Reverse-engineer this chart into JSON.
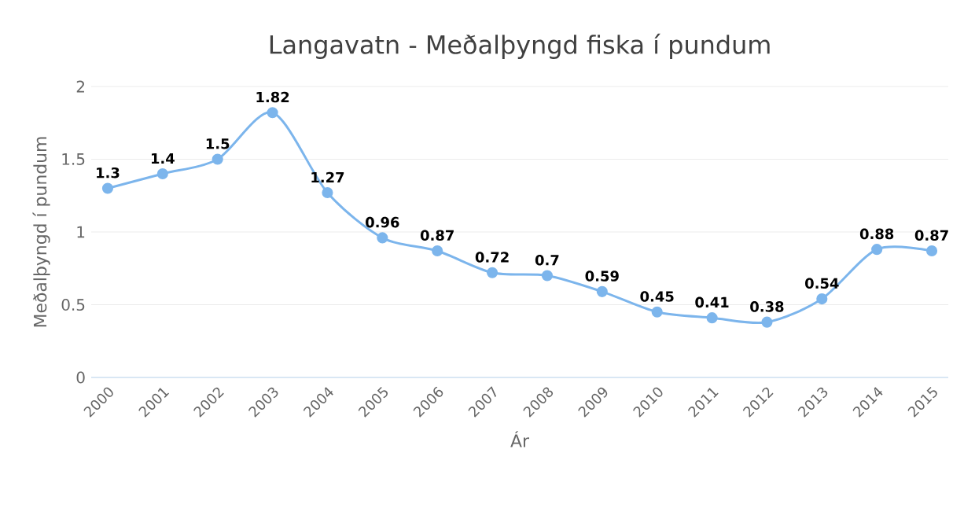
{
  "chart_data": {
    "type": "line",
    "title": "Langavatn - Meðalþyngd fiska í pundum",
    "xlabel": "Ár",
    "ylabel": "Meðalþyngd í pundum",
    "categories": [
      "2000",
      "2001",
      "2002",
      "2003",
      "2004",
      "2005",
      "2006",
      "2007",
      "2008",
      "2009",
      "2010",
      "2011",
      "2012",
      "2013",
      "2014",
      "2015"
    ],
    "values": [
      1.3,
      1.4,
      1.5,
      1.82,
      1.27,
      0.96,
      0.87,
      0.72,
      0.7,
      0.59,
      0.45,
      0.41,
      0.38,
      0.54,
      0.88,
      0.87
    ],
    "color": "#7cb5ec",
    "ylim": [
      0,
      2
    ],
    "yticks": [
      0,
      0.5,
      1,
      1.5,
      2
    ],
    "grid": "y",
    "marker": "circle",
    "line_style": "solid",
    "data_labels": true
  }
}
